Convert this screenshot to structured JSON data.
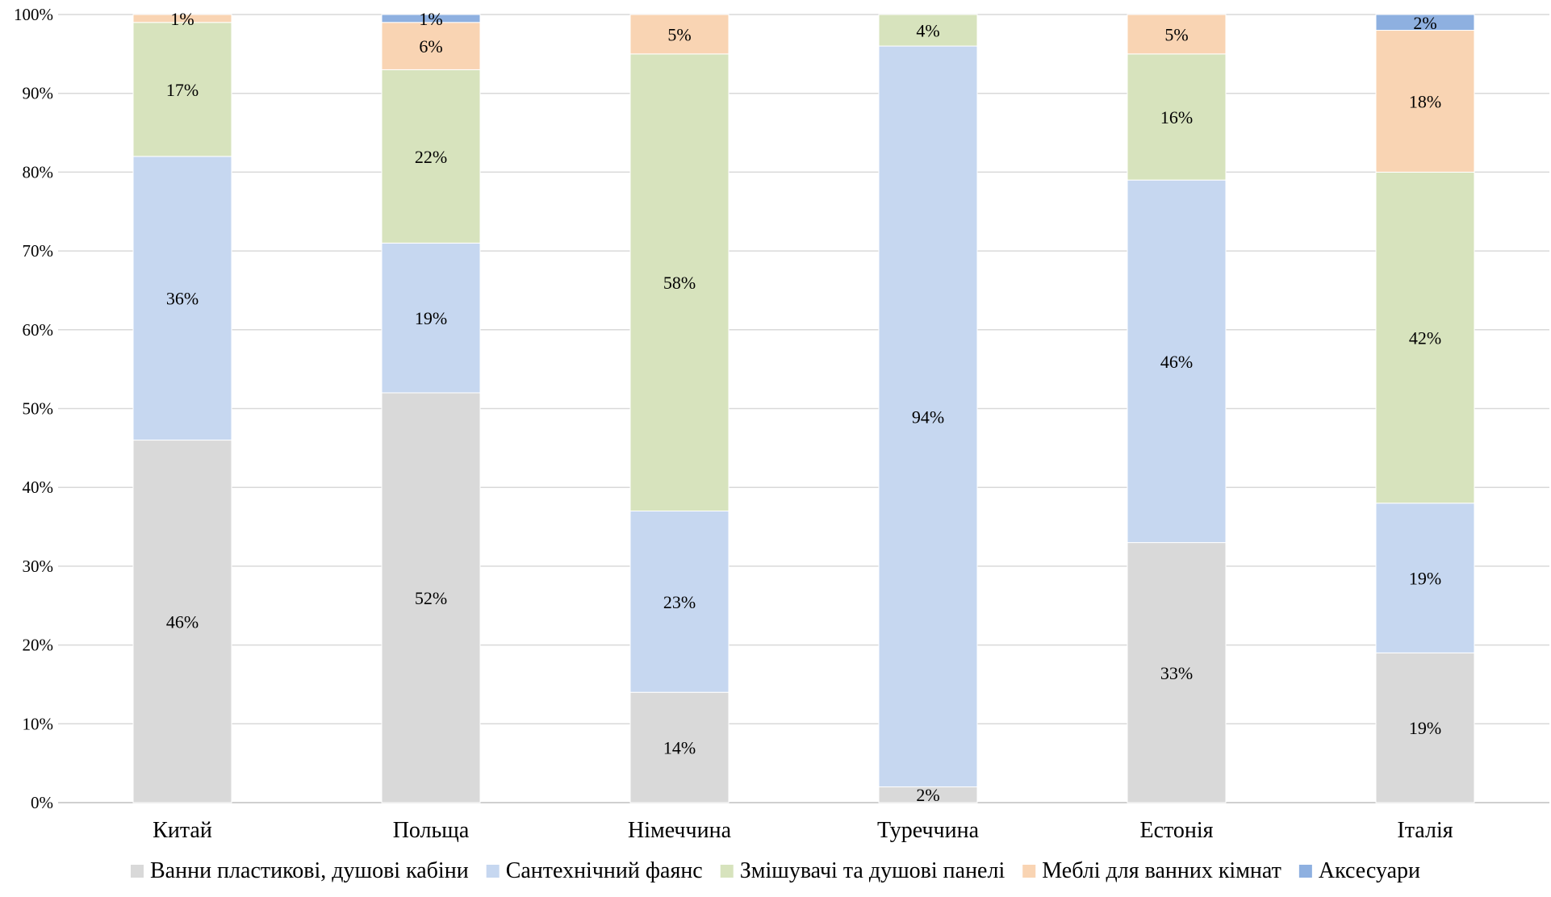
{
  "chart_data": {
    "type": "bar",
    "stacked": true,
    "percent": true,
    "categories": [
      "Китай",
      "Польща",
      "Німеччина",
      "Туреччина",
      "Естонія",
      "Італія"
    ],
    "series": [
      {
        "name": "Ванни пластикові, душові кабіни",
        "color": "#d9d9d9",
        "values": [
          46,
          52,
          14,
          2,
          33,
          19
        ],
        "labels": [
          "46%",
          "52%",
          "14%",
          "2%",
          "33%",
          "19%"
        ]
      },
      {
        "name": "Сантехнічний фаянс",
        "color": "#c6d7f0",
        "values": [
          36,
          19,
          23,
          94,
          46,
          19
        ],
        "labels": [
          "36%",
          "19%",
          "23%",
          "94%",
          "46%",
          "19%"
        ]
      },
      {
        "name": "Змішувачі та душові панелі",
        "color": "#d7e3bd",
        "values": [
          17,
          22,
          58,
          4,
          16,
          42
        ],
        "labels": [
          "17%",
          "22%",
          "58%",
          "4%",
          "16%",
          "42%"
        ]
      },
      {
        "name": "Меблі для ванних кімнат",
        "color": "#f9d4b3",
        "values": [
          1,
          6,
          5,
          0,
          5,
          18
        ],
        "labels": [
          "1%",
          "6%",
          "5%",
          "",
          "5%",
          "18%"
        ]
      },
      {
        "name": "Аксесуари",
        "color": "#8eb0e0",
        "values": [
          0,
          1,
          0,
          0,
          0,
          2
        ],
        "labels": [
          "",
          "1%",
          "",
          "",
          "",
          "2%"
        ]
      }
    ],
    "ylim": [
      0,
      100
    ],
    "yticks": [
      "0%",
      "10%",
      "20%",
      "30%",
      "40%",
      "50%",
      "60%",
      "70%",
      "80%",
      "90%",
      "100%"
    ],
    "grid": true,
    "legend": "bottom"
  }
}
